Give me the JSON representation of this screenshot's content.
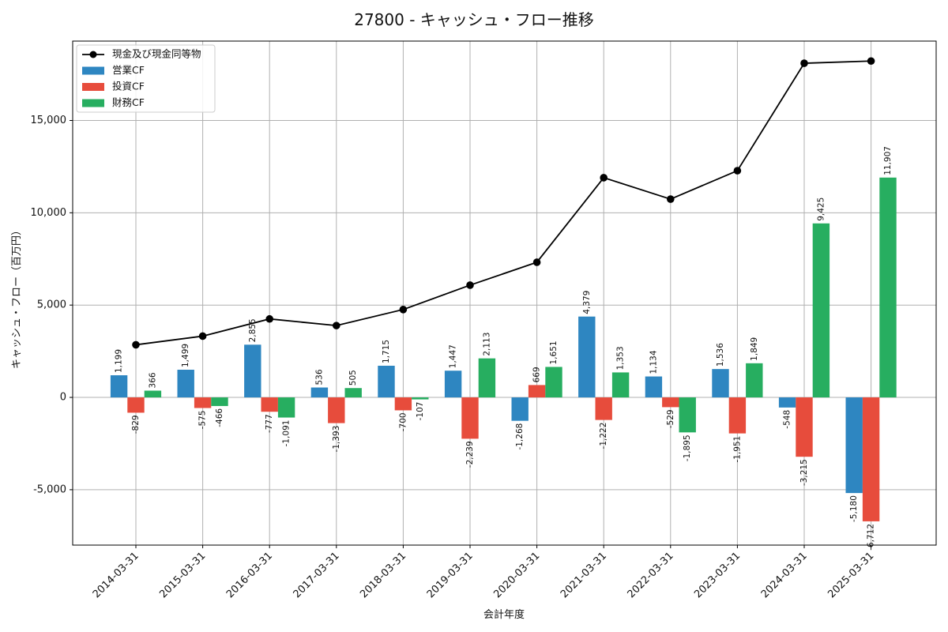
{
  "chart_data": {
    "type": "bar",
    "title": "27800 - キャッシュ・フロー推移",
    "xlabel": "会計年度",
    "ylabel": "キャッシュ・フロー（百万円）",
    "categories": [
      "2014-03-31",
      "2015-03-31",
      "2016-03-31",
      "2017-03-31",
      "2018-03-31",
      "2019-03-31",
      "2020-03-31",
      "2021-03-31",
      "2022-03-31",
      "2023-03-31",
      "2024-03-31",
      "2025-03-31"
    ],
    "ylim": [
      -8000,
      19300
    ],
    "yticks": [
      -5000,
      0,
      5000,
      10000,
      15000
    ],
    "ytick_labels": [
      "-5,000",
      "0",
      "5,000",
      "10,000",
      "15,000"
    ],
    "grid": true,
    "legend_position": "top-left",
    "series": [
      {
        "name": "営業CF",
        "kind": "bar",
        "color": "#2e86c1",
        "values": [
          1199,
          1499,
          2855,
          536,
          1715,
          1447,
          -1268,
          4379,
          1134,
          1536,
          -548,
          -5180
        ],
        "labels": [
          "1,199",
          "1,499",
          "2,855",
          "536",
          "1,715",
          "1,447",
          "-1,268",
          "4,379",
          "1,134",
          "1,536",
          "-548",
          "-5,180"
        ]
      },
      {
        "name": "投資CF",
        "kind": "bar",
        "color": "#e74c3c",
        "values": [
          -829,
          -575,
          -777,
          -1393,
          -700,
          -2239,
          669,
          -1222,
          -529,
          -1951,
          -3215,
          -6712
        ],
        "labels": [
          "-829",
          "-575",
          "-777",
          "-1,393",
          "-700",
          "-2,239",
          "669",
          "-1,222",
          "-529",
          "-1,951",
          "-3,215",
          "-6,712"
        ]
      },
      {
        "name": "財務CF",
        "kind": "bar",
        "color": "#27ae60",
        "values": [
          366,
          -466,
          -1091,
          505,
          -107,
          2113,
          1651,
          1353,
          -1895,
          1849,
          9425,
          11907
        ],
        "labels": [
          "366",
          "-466",
          "-1,091",
          "505",
          "-107",
          "2,113",
          "1,651",
          "1,353",
          "-1,895",
          "1,849",
          "9,425",
          "11,907"
        ]
      },
      {
        "name": "現金及び現金同等物",
        "kind": "line",
        "color": "#000000",
        "values": [
          2850,
          3320,
          4250,
          3890,
          4760,
          6080,
          7320,
          11900,
          10740,
          12280,
          18100,
          18220
        ]
      }
    ]
  }
}
